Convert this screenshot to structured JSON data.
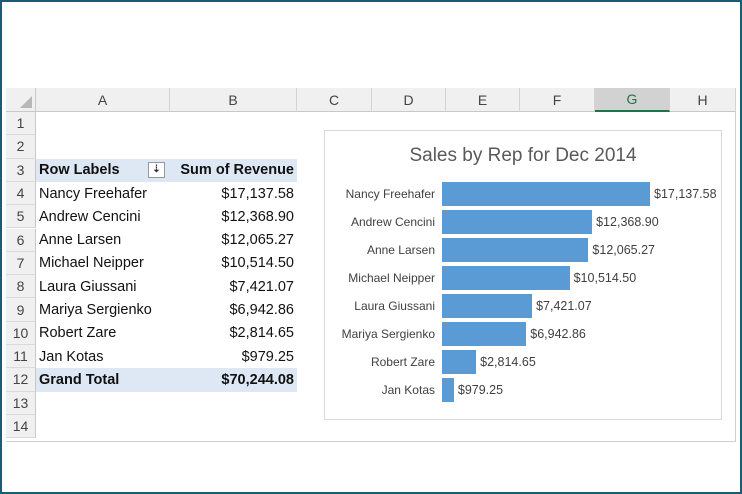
{
  "columns": [
    "A",
    "B",
    "C",
    "D",
    "E",
    "F",
    "G",
    "H"
  ],
  "selected_column": "G",
  "rows": [
    "1",
    "2",
    "3",
    "4",
    "5",
    "6",
    "7",
    "8",
    "9",
    "10",
    "11",
    "12",
    "13",
    "14"
  ],
  "pivot": {
    "header_labels": "Row Labels",
    "header_value": "Sum of Revenue",
    "filter_icon": "sort-filter-icon",
    "items": [
      {
        "name": "Nancy Freehafer",
        "value": "$17,137.58"
      },
      {
        "name": "Andrew Cencini",
        "value": "$12,368.90"
      },
      {
        "name": "Anne Larsen",
        "value": "$12,065.27"
      },
      {
        "name": "Michael Neipper",
        "value": "$10,514.50"
      },
      {
        "name": "Laura Giussani",
        "value": "$7,421.07"
      },
      {
        "name": "Mariya Sergienko",
        "value": "$6,942.86"
      },
      {
        "name": "Robert Zare",
        "value": "$2,814.65"
      },
      {
        "name": "Jan Kotas",
        "value": "$979.25"
      }
    ],
    "total_label": "Grand Total",
    "total_value": "$70,244.08"
  },
  "chart_data": {
    "type": "bar",
    "orientation": "horizontal",
    "title": "Sales by Rep for Dec 2014",
    "categories": [
      "Nancy Freehafer",
      "Andrew Cencini",
      "Anne Larsen",
      "Michael Neipper",
      "Laura Giussani",
      "Mariya Sergienko",
      "Robert Zare",
      "Jan Kotas"
    ],
    "values": [
      17137.58,
      12368.9,
      12065.27,
      10514.5,
      7421.07,
      6942.86,
      2814.65,
      979.25
    ],
    "data_labels": [
      "$17,137.58",
      "$12,368.90",
      "$12,065.27",
      "$10,514.50",
      "$7,421.07",
      "$6,942.86",
      "$2,814.65",
      "$979.25"
    ],
    "color": "#5b9bd5",
    "grid": false,
    "legend": "none"
  },
  "colors": {
    "frame": "#1d5b73",
    "pivot_highlight": "#dde8f4",
    "selected_header": "#217346"
  }
}
